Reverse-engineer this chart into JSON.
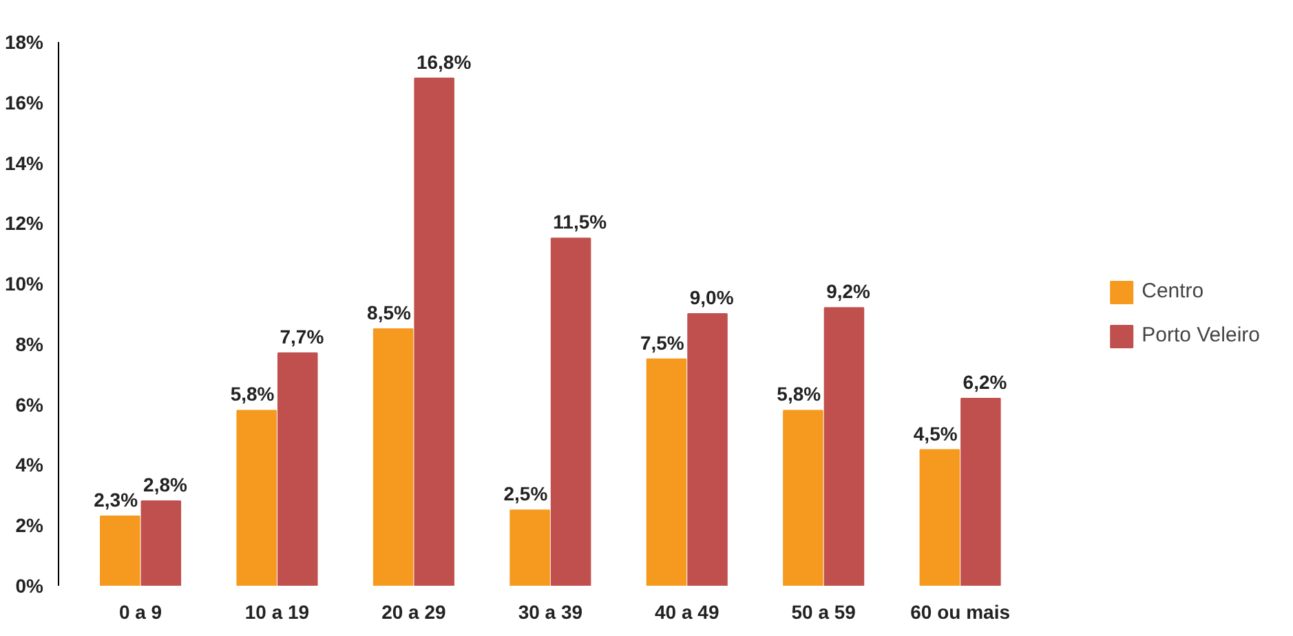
{
  "chart_data": {
    "type": "bar",
    "categories": [
      "0 a 9",
      "10 a 19",
      "20 a 29",
      "30 a 39",
      "40 a 49",
      "50 a 59",
      "60 ou mais"
    ],
    "series": [
      {
        "name": "Centro",
        "color": "#f59a1f",
        "values": [
          2.3,
          5.8,
          8.5,
          2.5,
          7.5,
          5.8,
          4.5
        ],
        "value_labels": [
          "2,3%",
          "5,8%",
          "8,5%",
          "2,5%",
          "7,5%",
          "5,8%",
          "4,5%"
        ]
      },
      {
        "name": "Porto Veleiro",
        "color": "#c0504d",
        "values": [
          2.8,
          7.7,
          16.8,
          11.5,
          9.0,
          9.2,
          6.2
        ],
        "value_labels": [
          "2,8%",
          "7,7%",
          "16,8%",
          "11,5%",
          "9,0%",
          "9,2%",
          "6,2%"
        ]
      }
    ],
    "ylim": [
      0,
      18
    ],
    "yticks": [
      {
        "value": 0,
        "label": "0%"
      },
      {
        "value": 2,
        "label": "2%"
      },
      {
        "value": 4,
        "label": "4%"
      },
      {
        "value": 6,
        "label": "6%"
      },
      {
        "value": 8,
        "label": "8%"
      },
      {
        "value": 10,
        "label": "10%"
      },
      {
        "value": 12,
        "label": "12%"
      },
      {
        "value": 14,
        "label": "14%"
      },
      {
        "value": 16,
        "label": "16%"
      },
      {
        "value": 18,
        "label": "18%"
      }
    ],
    "grid": false,
    "legend": "right"
  }
}
